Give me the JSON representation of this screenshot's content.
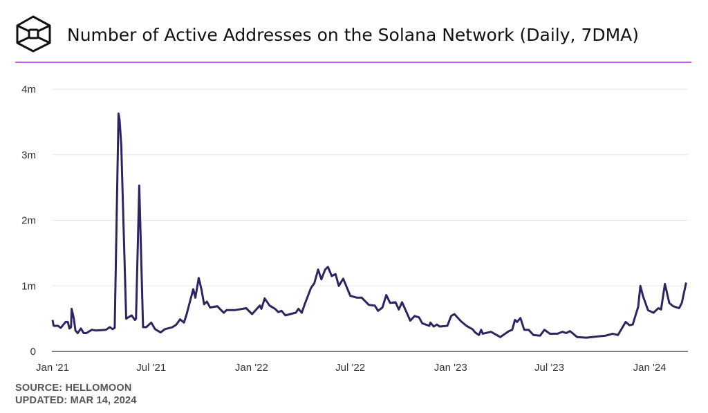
{
  "header": {
    "title": "Number of Active Addresses on the Solana Network (Daily, 7DMA)",
    "logo_icon": "cube-hexagon-icon",
    "rule_color": "#b026ff"
  },
  "footer": {
    "source": "SOURCE: HELLOMOON",
    "updated": "UPDATED: MAR 14, 2024"
  },
  "chart_data": {
    "type": "line",
    "title": "Number of Active Addresses on the Solana Network (Daily, 7DMA)",
    "xlabel": "",
    "ylabel": "",
    "x_type": "date",
    "xlim": [
      "2021-01-01",
      "2024-03-10"
    ],
    "ylim": [
      0,
      4000000
    ],
    "grid": true,
    "line_color": "#2b2560",
    "x_ticks": [
      {
        "date": "2021-01-01",
        "label": "Jan '21"
      },
      {
        "date": "2021-07-01",
        "label": "Jul '21"
      },
      {
        "date": "2022-01-01",
        "label": "Jan '22"
      },
      {
        "date": "2022-07-01",
        "label": "Jul '22"
      },
      {
        "date": "2023-01-01",
        "label": "Jan '23"
      },
      {
        "date": "2023-07-01",
        "label": "Jul '23"
      },
      {
        "date": "2024-01-01",
        "label": "Jan '24"
      }
    ],
    "y_ticks": [
      {
        "value": 0,
        "label": "0"
      },
      {
        "value": 1000000,
        "label": "1m"
      },
      {
        "value": 2000000,
        "label": "2m"
      },
      {
        "value": 3000000,
        "label": "3m"
      },
      {
        "value": 4000000,
        "label": "4m"
      }
    ],
    "series": [
      {
        "x": [
          "2021-01-01",
          "2021-01-03",
          "2021-01-11",
          "2021-01-16",
          "2021-01-25",
          "2021-01-29",
          "2021-02-01",
          "2021-02-04",
          "2021-02-05",
          "2021-02-09",
          "2021-02-12",
          "2021-02-16",
          "2021-02-22",
          "2021-02-27",
          "2021-03-04",
          "2021-03-14",
          "2021-03-21",
          "2021-04-09",
          "2021-04-16",
          "2021-04-21",
          "2021-04-25",
          "2021-05-02",
          "2021-05-04",
          "2021-05-07",
          "2021-05-16",
          "2021-05-26",
          "2021-06-01",
          "2021-06-03",
          "2021-06-09",
          "2021-06-16",
          "2021-06-22",
          "2021-07-01",
          "2021-07-08",
          "2021-07-18",
          "2021-07-26",
          "2021-08-09",
          "2021-08-16",
          "2021-08-23",
          "2021-08-30",
          "2021-09-04",
          "2021-09-09",
          "2021-09-16",
          "2021-09-20",
          "2021-09-26",
          "2021-10-01",
          "2021-10-06",
          "2021-10-11",
          "2021-10-17",
          "2021-10-30",
          "2021-11-11",
          "2021-11-16",
          "2021-12-01",
          "2021-12-16",
          "2021-12-22",
          "2022-01-02",
          "2022-01-16",
          "2022-01-19",
          "2022-01-25",
          "2022-02-03",
          "2022-02-13",
          "2022-02-19",
          "2022-02-25",
          "2022-03-04",
          "2022-03-13",
          "2022-03-23",
          "2022-03-28",
          "2022-04-03",
          "2022-04-09",
          "2022-04-20",
          "2022-04-26",
          "2022-05-03",
          "2022-05-09",
          "2022-05-16",
          "2022-05-21",
          "2022-05-28",
          "2022-06-04",
          "2022-06-10",
          "2022-06-18",
          "2022-07-01",
          "2022-07-13",
          "2022-07-22",
          "2022-08-04",
          "2022-08-15",
          "2022-08-21",
          "2022-08-29",
          "2022-09-05",
          "2022-09-12",
          "2022-09-22",
          "2022-09-28",
          "2022-10-04",
          "2022-10-19",
          "2022-10-27",
          "2022-11-04",
          "2022-11-10",
          "2022-11-23",
          "2022-11-25",
          "2022-12-01",
          "2022-12-07",
          "2022-12-12",
          "2022-12-26",
          "2023-01-02",
          "2023-01-08",
          "2023-01-20",
          "2023-01-30",
          "2023-02-10",
          "2023-02-15",
          "2023-02-22",
          "2023-02-26",
          "2023-03-01",
          "2023-03-16",
          "2023-04-02",
          "2023-04-18",
          "2023-04-24",
          "2023-04-29",
          "2023-05-03",
          "2023-05-09",
          "2023-05-16",
          "2023-05-24",
          "2023-06-02",
          "2023-06-14",
          "2023-06-22",
          "2023-07-02",
          "2023-07-16",
          "2023-07-25",
          "2023-08-01",
          "2023-08-08",
          "2023-08-21",
          "2023-09-07",
          "2023-09-29",
          "2023-10-12",
          "2023-10-25",
          "2023-11-04",
          "2023-11-18",
          "2023-11-25",
          "2023-12-01",
          "2023-12-11",
          "2023-12-15",
          "2023-12-20",
          "2023-12-29",
          "2024-01-08",
          "2024-01-17",
          "2024-01-22",
          "2024-01-29",
          "2024-02-06",
          "2024-02-13",
          "2024-02-24",
          "2024-02-29",
          "2024-03-08"
        ],
        "values": [
          480000,
          390000,
          390000,
          360000,
          450000,
          450000,
          350000,
          370000,
          650000,
          500000,
          320000,
          280000,
          350000,
          280000,
          280000,
          330000,
          320000,
          330000,
          370000,
          340000,
          360000,
          3630000,
          3530000,
          3140000,
          500000,
          550000,
          480000,
          500000,
          2530000,
          370000,
          370000,
          440000,
          340000,
          290000,
          340000,
          370000,
          410000,
          490000,
          440000,
          570000,
          730000,
          950000,
          820000,
          1120000,
          950000,
          720000,
          760000,
          670000,
          690000,
          590000,
          630000,
          630000,
          650000,
          660000,
          570000,
          700000,
          650000,
          810000,
          700000,
          650000,
          600000,
          620000,
          550000,
          570000,
          590000,
          650000,
          590000,
          730000,
          970000,
          1040000,
          1250000,
          1100000,
          1250000,
          1290000,
          1150000,
          1180000,
          1000000,
          1110000,
          850000,
          820000,
          820000,
          710000,
          700000,
          620000,
          670000,
          860000,
          740000,
          750000,
          640000,
          750000,
          470000,
          540000,
          520000,
          430000,
          390000,
          440000,
          380000,
          410000,
          380000,
          390000,
          540000,
          570000,
          460000,
          390000,
          340000,
          290000,
          250000,
          330000,
          270000,
          300000,
          220000,
          310000,
          330000,
          480000,
          450000,
          510000,
          330000,
          330000,
          250000,
          240000,
          330000,
          270000,
          270000,
          300000,
          280000,
          310000,
          220000,
          210000,
          230000,
          240000,
          270000,
          250000,
          450000,
          400000,
          410000,
          680000,
          1000000,
          840000,
          630000,
          590000,
          660000,
          640000,
          1030000,
          740000,
          690000,
          660000,
          740000,
          1050000
        ]
      }
    ]
  }
}
